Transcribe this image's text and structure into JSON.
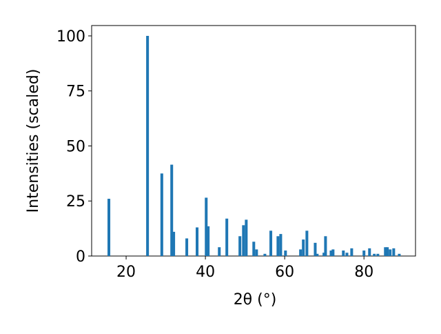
{
  "chart_data": {
    "type": "bar",
    "xlabel": "2θ (°)",
    "ylabel": "Intensities (scaled)",
    "x": [
      15.65,
      25.4,
      29.0,
      31.5,
      32.0,
      35.3,
      37.9,
      40.2,
      40.7,
      43.5,
      45.4,
      48.7,
      49.6,
      50.3,
      52.2,
      52.9,
      55.0,
      56.5,
      58.3,
      59.0,
      60.2,
      64.0,
      64.7,
      65.6,
      67.7,
      68.2,
      69.9,
      70.3,
      71.7,
      72.2,
      74.8,
      75.7,
      76.9,
      80.0,
      81.4,
      82.6,
      83.5,
      85.4,
      85.9,
      86.6,
      87.5,
      88.9
    ],
    "values": [
      26,
      100,
      37.5,
      41.5,
      11,
      8,
      13,
      26.5,
      13.5,
      4,
      17,
      9,
      14,
      16.5,
      6.5,
      3,
      1,
      11.5,
      9,
      10,
      2.5,
      3,
      7.5,
      11.5,
      6,
      1,
      1.5,
      9,
      2.5,
      3,
      2.5,
      1.5,
      3.5,
      2.5,
      3.5,
      1,
      1,
      4,
      4,
      3,
      3.5,
      1
    ],
    "color": "#1f77b4",
    "xlim": [
      11.3,
      93.0
    ],
    "ylim": [
      0,
      104.7
    ],
    "xticks": [
      20,
      40,
      60,
      80
    ],
    "yticks": [
      0,
      25,
      50,
      75,
      100
    ]
  }
}
